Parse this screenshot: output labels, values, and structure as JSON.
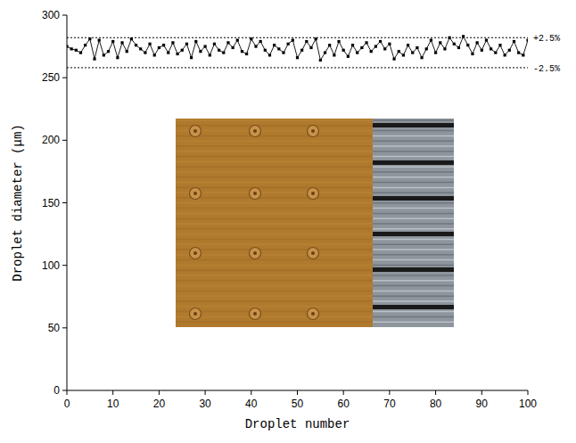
{
  "chart_data": {
    "type": "line",
    "marker": "square",
    "line_style": "solid",
    "color": "#000000",
    "x_label": "Droplet number",
    "y_label": "Droplet diameter (μm)",
    "xlim": [
      0,
      100
    ],
    "xticks": [
      0,
      10,
      20,
      30,
      40,
      50,
      60,
      70,
      80,
      90,
      100
    ],
    "ylim": [
      0,
      300
    ],
    "yticks": [
      0,
      50,
      100,
      150,
      200,
      250,
      300
    ],
    "grid": false,
    "x": [
      0,
      1,
      2,
      3,
      4,
      5,
      6,
      7,
      8,
      9,
      10,
      11,
      12,
      13,
      14,
      15,
      16,
      17,
      18,
      19,
      20,
      21,
      22,
      23,
      24,
      25,
      26,
      27,
      28,
      29,
      30,
      31,
      32,
      33,
      34,
      35,
      36,
      37,
      38,
      39,
      40,
      41,
      42,
      43,
      44,
      45,
      46,
      47,
      48,
      49,
      50,
      51,
      52,
      53,
      54,
      55,
      56,
      57,
      58,
      59,
      60,
      61,
      62,
      63,
      64,
      65,
      66,
      67,
      68,
      69,
      70,
      71,
      72,
      73,
      74,
      75,
      76,
      77,
      78,
      79,
      80,
      81,
      82,
      83,
      84,
      85,
      86,
      87,
      88,
      89,
      90,
      91,
      92,
      93,
      94,
      95,
      96,
      97,
      98,
      99,
      100
    ],
    "values": [
      275,
      273,
      272,
      270,
      276,
      281,
      265,
      280,
      268,
      271,
      279,
      266,
      278,
      271,
      281,
      276,
      273,
      270,
      277,
      268,
      274,
      276,
      270,
      278,
      269,
      272,
      277,
      266,
      279,
      271,
      275,
      268,
      277,
      272,
      270,
      278,
      274,
      280,
      271,
      269,
      281,
      275,
      279,
      272,
      268,
      276,
      273,
      270,
      277,
      280,
      266,
      272,
      279,
      274,
      281,
      264,
      270,
      276,
      268,
      279,
      272,
      267,
      276,
      270,
      274,
      278,
      271,
      275,
      279,
      273,
      277,
      265,
      271,
      268,
      276,
      270,
      274,
      266,
      273,
      280,
      270,
      278,
      273,
      282,
      277,
      274,
      283,
      276,
      269,
      278,
      272,
      280,
      273,
      270,
      276,
      268,
      272,
      279,
      270,
      268,
      280
    ],
    "annotations": [
      {
        "y": 282,
        "label": "+2.5%"
      },
      {
        "y": 258,
        "label": "-2.5%"
      }
    ]
  }
}
